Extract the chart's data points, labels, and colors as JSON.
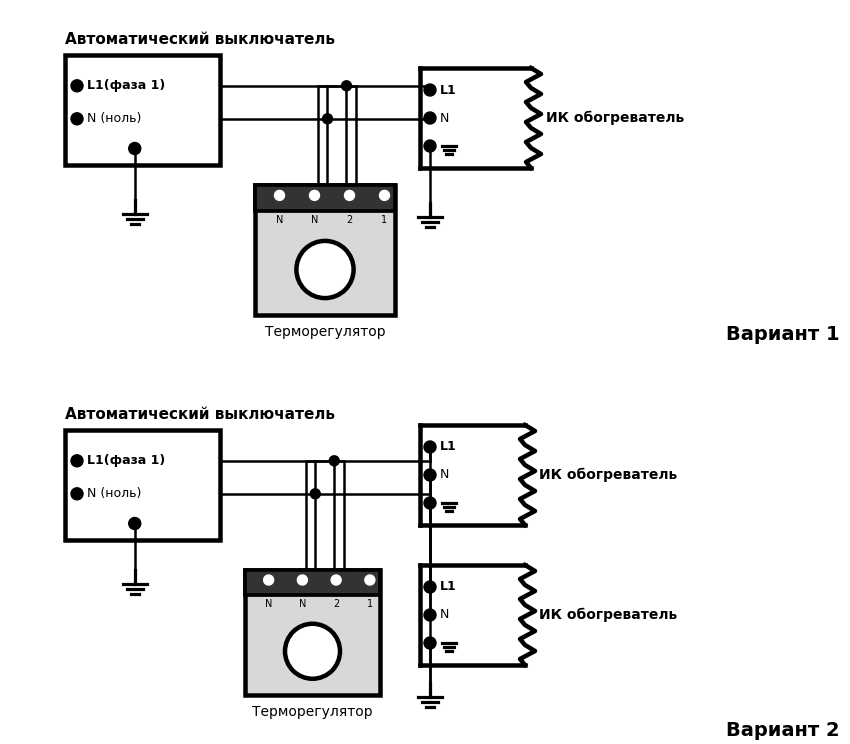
{
  "bg_color": "#ffffff",
  "line_color": "#000000",
  "title_v1": "Автоматический выключатель",
  "title_v2": "Автоматический выключатель",
  "label_termo": "Терморегулятор",
  "label_ik": "ИК обогреватель",
  "label_variant1": "Вариант 1",
  "label_variant2": "Вариант 2",
  "label_L1faza": "L1(фаза 1)",
  "label_Nnol": "N (ноль)",
  "label_L1": "L1",
  "label_N": "N"
}
